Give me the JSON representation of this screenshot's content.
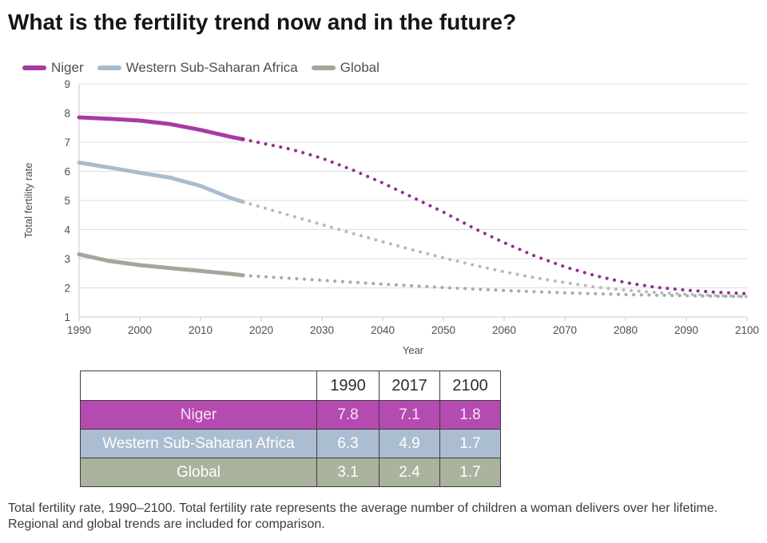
{
  "title": "What is the fertility trend now and in the future?",
  "legend": [
    {
      "id": "niger",
      "label": "Niger",
      "color": "#a73ba2"
    },
    {
      "id": "western-sub-saharan-africa",
      "label": "Western Sub-Saharan Africa",
      "color": "#a9bccf"
    },
    {
      "id": "global",
      "label": "Global",
      "color": "#9fa99b"
    }
  ],
  "colors": {
    "grid": "#dedede",
    "axis": "#c8c8c8",
    "axis_text": "#4d4d4d",
    "table_border": "#3d3d3d"
  },
  "chart_data": {
    "type": "line",
    "xlabel": "Year",
    "ylabel": "Total fertility rate",
    "xlim": [
      1990,
      2100
    ],
    "ylim": [
      1,
      9
    ],
    "xticks": [
      1990,
      2000,
      2010,
      2020,
      2030,
      2040,
      2050,
      2060,
      2070,
      2080,
      2090,
      2100
    ],
    "yticks": [
      1,
      2,
      3,
      4,
      5,
      6,
      7,
      8,
      9
    ],
    "grid": "horizontal",
    "legend_position": "top-left",
    "projection_note": "solid = observed 1990-2017, dotted = projected 2017-2100",
    "series": [
      {
        "name": "Niger",
        "color": "#a73ba2",
        "projected_color": "#952d92",
        "solid": [
          [
            1990,
            7.85
          ],
          [
            1995,
            7.8
          ],
          [
            2000,
            7.74
          ],
          [
            2005,
            7.62
          ],
          [
            2010,
            7.42
          ],
          [
            2015,
            7.18
          ],
          [
            2017,
            7.1
          ]
        ],
        "projected": [
          [
            2017,
            7.1
          ],
          [
            2020,
            6.97
          ],
          [
            2025,
            6.75
          ],
          [
            2030,
            6.45
          ],
          [
            2035,
            6.05
          ],
          [
            2040,
            5.6
          ],
          [
            2045,
            5.1
          ],
          [
            2050,
            4.6
          ],
          [
            2055,
            4.05
          ],
          [
            2060,
            3.55
          ],
          [
            2065,
            3.1
          ],
          [
            2070,
            2.72
          ],
          [
            2075,
            2.42
          ],
          [
            2080,
            2.18
          ],
          [
            2085,
            2.02
          ],
          [
            2090,
            1.92
          ],
          [
            2095,
            1.85
          ],
          [
            2100,
            1.8
          ]
        ]
      },
      {
        "name": "Western Sub-Saharan Africa",
        "color": "#a9bccf",
        "projected_color": "#b3bcc4",
        "solid": [
          [
            1990,
            6.3
          ],
          [
            1995,
            6.13
          ],
          [
            2000,
            5.95
          ],
          [
            2005,
            5.78
          ],
          [
            2010,
            5.5
          ],
          [
            2015,
            5.08
          ],
          [
            2017,
            4.95
          ]
        ],
        "projected": [
          [
            2017,
            4.95
          ],
          [
            2020,
            4.77
          ],
          [
            2025,
            4.47
          ],
          [
            2030,
            4.17
          ],
          [
            2035,
            3.87
          ],
          [
            2040,
            3.58
          ],
          [
            2045,
            3.3
          ],
          [
            2050,
            3.03
          ],
          [
            2055,
            2.78
          ],
          [
            2060,
            2.55
          ],
          [
            2065,
            2.35
          ],
          [
            2070,
            2.18
          ],
          [
            2075,
            2.03
          ],
          [
            2080,
            1.92
          ],
          [
            2085,
            1.84
          ],
          [
            2090,
            1.78
          ],
          [
            2095,
            1.74
          ],
          [
            2100,
            1.7
          ]
        ]
      },
      {
        "name": "Global",
        "color": "#9fa99b",
        "projected_color": "#a5ada2",
        "solid": [
          [
            1990,
            3.15
          ],
          [
            1995,
            2.92
          ],
          [
            2000,
            2.78
          ],
          [
            2005,
            2.68
          ],
          [
            2010,
            2.58
          ],
          [
            2015,
            2.48
          ],
          [
            2017,
            2.43
          ]
        ],
        "projected": [
          [
            2017,
            2.43
          ],
          [
            2020,
            2.39
          ],
          [
            2030,
            2.26
          ],
          [
            2040,
            2.13
          ],
          [
            2050,
            2.01
          ],
          [
            2060,
            1.91
          ],
          [
            2070,
            1.83
          ],
          [
            2080,
            1.77
          ],
          [
            2090,
            1.73
          ],
          [
            2100,
            1.7
          ]
        ]
      }
    ]
  },
  "table": {
    "headers": [
      "",
      "1990",
      "2017",
      "2100"
    ],
    "rows": [
      {
        "label": "Niger",
        "values": [
          "7.8",
          "7.1",
          "1.8"
        ],
        "bg": "#b44bb0",
        "text": "#fbe3f7"
      },
      {
        "label": "Western Sub-Saharan Africa",
        "values": [
          "6.3",
          "4.9",
          "1.7"
        ],
        "bg": "#abbdd1",
        "text": "#ffffff"
      },
      {
        "label": "Global",
        "values": [
          "3.1",
          "2.4",
          "1.7"
        ],
        "bg": "#a9b39d",
        "text": "#ffffff"
      }
    ]
  },
  "caption": "Total fertility rate, 1990–2100. Total fertility rate represents the average number of children a woman delivers over her lifetime. Regional and global trends are included for comparison."
}
